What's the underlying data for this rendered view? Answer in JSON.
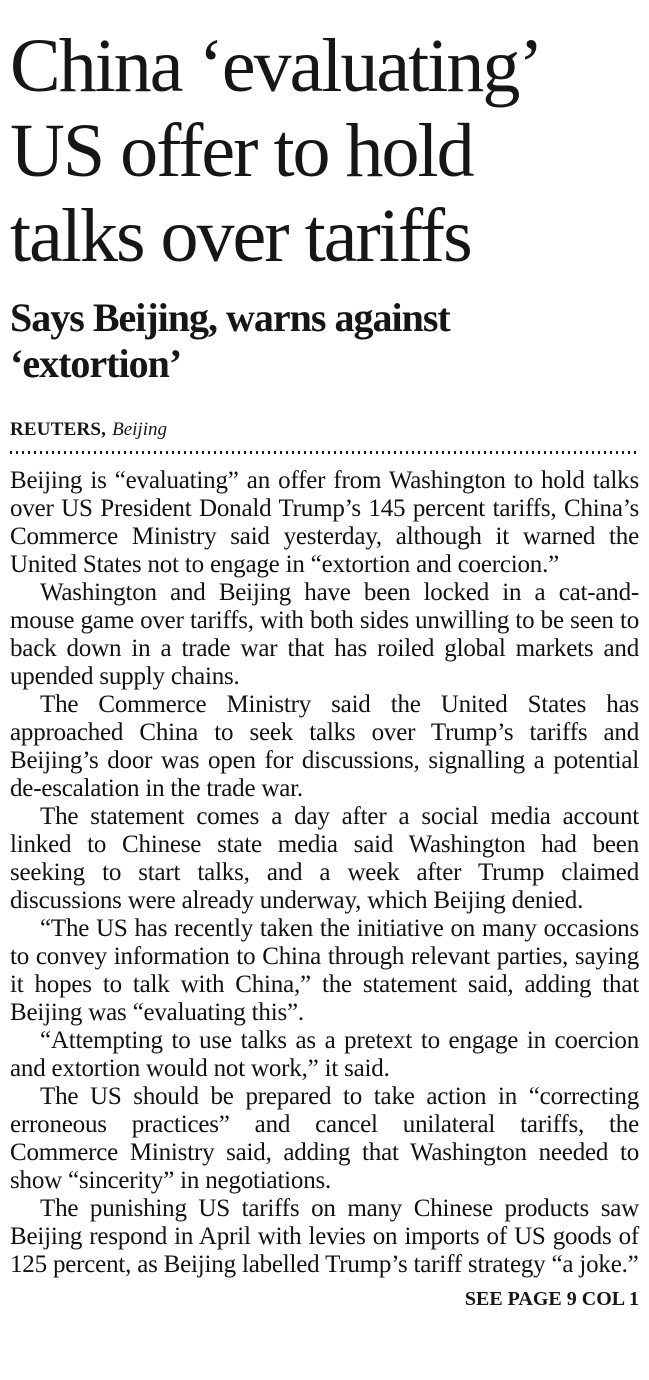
{
  "page": {
    "background_color": "#ffffff",
    "text_color": "#1a1a1a"
  },
  "article": {
    "headline_lines": [
      "China ‘evaluating’",
      "US offer to hold",
      "talks over tariffs"
    ],
    "subheadline_lines": [
      "Says Beijing, warns against",
      "‘extortion’"
    ],
    "byline": {
      "agency": "REUTERS,",
      "location": "Beijing"
    },
    "paragraphs": [
      "Beijing is “evaluating” an offer from Washington to hold talks over US President Donald Trump’s 145 percent tariffs, China’s Commerce Ministry said yesterday, although it warned the United States not to engage in “extortion and coercion.”",
      "Washington and Beijing have been locked in a cat-and-mouse game over tariffs, with both sides unwilling to be seen to back down in a trade war that has roiled global markets and upended supply chains.",
      "The Commerce Ministry said the United States has approached China to seek talks over Trump’s tariffs and Beijing’s door was open for discussions, signalling a potential de-escalation in the trade war.",
      "The statement comes a day after a social media account linked to Chinese state media said Washington had been seeking to start talks, and a week after Trump claimed discussions were already underway, which Beijing denied.",
      "“The US has recently taken the initiative on many occasions to convey information to China through relevant parties, saying it hopes to talk with China,” the statement said, adding that Beijing was “evaluating this”.",
      "“Attempting to use talks as a pretext to engage in coercion and extortion would not work,” it said.",
      "The US should be prepared to take action in “correcting erroneous practices” and cancel unilateral tariffs, the Commerce Ministry said, adding that Washington needed to show “sincerity” in negotiations.",
      "The punishing US tariffs on many Chinese products saw Beijing respond in April with levies on imports of US goods of 125 percent, as Beijing labelled Trump’s tariff strategy “a joke.”"
    ],
    "jump_line": "SEE PAGE 9 COL 1"
  }
}
